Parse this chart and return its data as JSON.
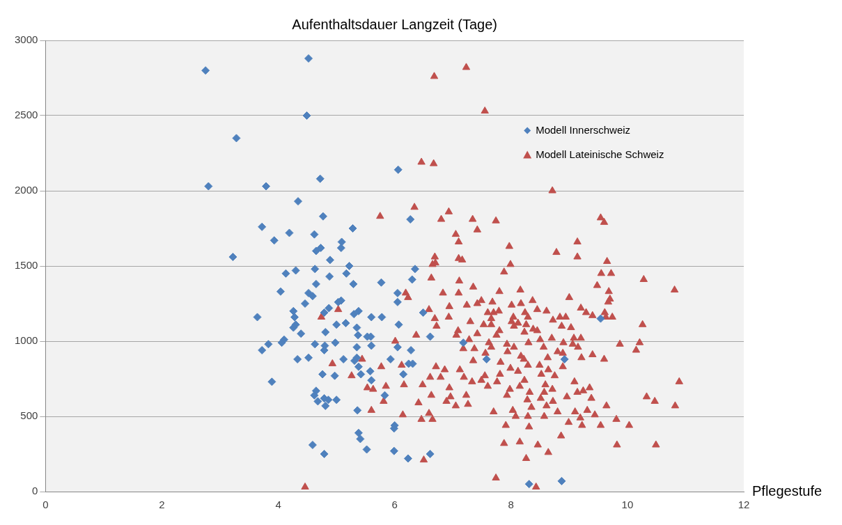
{
  "chart_data": {
    "type": "scatter",
    "xlabel": "Pflegestufe",
    "ylabel": "Aufenthaltsdauer Langzeit (Tage)",
    "xlim": [
      0,
      12
    ],
    "xticks": [
      0,
      2,
      4,
      6,
      8,
      10,
      12
    ],
    "ylim": [
      0,
      3000
    ],
    "yticks": [
      0,
      500,
      1000,
      1500,
      2000,
      2500,
      3000
    ],
    "grid": "y",
    "legend": "top right",
    "series": [
      {
        "name": "Modell Innerschweiz",
        "color": "#4f81bd",
        "marker": "diamond",
        "x": [
          2.75,
          4.52,
          4.49,
          3.28,
          2.8,
          3.79,
          4.72,
          6.06,
          4.34,
          4.77,
          3.72,
          4.19,
          5.28,
          4.62,
          3.93,
          5.09,
          6.27,
          4.73,
          4.65,
          5.08,
          3.22,
          4.89,
          5.22,
          4.13,
          4.3,
          4.63,
          6.35,
          4.88,
          5.17,
          6.3,
          5.29,
          4.65,
          5.77,
          4.04,
          4.52,
          4.59,
          6.05,
          5.08,
          4.46,
          5.03,
          6.05,
          6.49,
          3.64,
          4.26,
          4.28,
          4.87,
          4.79,
          5.3,
          5.38,
          5.6,
          5.78,
          4.3,
          4.26,
          5.0,
          5.16,
          6.07,
          5.35,
          4.39,
          4.1,
          4.06,
          4.81,
          5.37,
          5.53,
          5.59,
          6.61,
          7.18,
          9.54,
          3.83,
          3.72,
          4.63,
          4.8,
          4.98,
          5.35,
          5.6,
          6.05,
          6.28,
          4.33,
          4.52,
          4.79,
          5.12,
          5.31,
          5.35,
          5.38,
          5.93,
          6.24,
          6.31,
          6.15,
          7.58,
          8.92,
          5.42,
          4.97,
          4.76,
          5.58,
          5.6,
          3.89,
          5.83,
          4.65,
          4.62,
          4.68,
          4.79,
          4.86,
          4.81,
          5.0,
          5.36,
          6.0,
          5.99,
          5.38,
          5.41,
          4.59,
          4.79,
          5.52,
          5.99,
          6.23,
          6.61,
          8.31,
          8.87
        ],
        "values": [
          2800,
          2880,
          2500,
          2350,
          2030,
          2030,
          2080,
          2140,
          1930,
          1830,
          1760,
          1720,
          1750,
          1710,
          1670,
          1660,
          1810,
          1620,
          1600,
          1620,
          1560,
          1540,
          1500,
          1450,
          1470,
          1480,
          1480,
          1430,
          1450,
          1410,
          1380,
          1380,
          1390,
          1330,
          1320,
          1300,
          1320,
          1270,
          1250,
          1260,
          1260,
          1190,
          1160,
          1200,
          1160,
          1220,
          1190,
          1180,
          1200,
          1160,
          1160,
          1110,
          1090,
          1110,
          1120,
          1110,
          1090,
          1050,
          1010,
          990,
          1060,
          1040,
          1030,
          1030,
          1030,
          990,
          1150,
          980,
          940,
          980,
          970,
          990,
          960,
          970,
          960,
          940,
          880,
          890,
          940,
          880,
          870,
          890,
          830,
          880,
          850,
          850,
          780,
          880,
          880,
          780,
          770,
          780,
          800,
          740,
          730,
          640,
          670,
          640,
          600,
          620,
          610,
          570,
          610,
          540,
          440,
          420,
          390,
          350,
          310,
          250,
          280,
          270,
          220,
          250,
          50,
          70
        ]
      },
      {
        "name": "Modell Lateinische Schweiz",
        "color": "#c0504d",
        "marker": "triangle",
        "x": [
          7.23,
          6.68,
          7.55,
          6.46,
          6.67,
          8.71,
          5.75,
          6.34,
          6.93,
          6.8,
          7.34,
          7.42,
          7.74,
          7.05,
          7.1,
          9.14,
          9.54,
          9.6,
          7.97,
          6.69,
          7.1,
          7.16,
          6.7,
          6.65,
          7.99,
          8.78,
          9.14,
          9.65,
          7.88,
          9.55,
          6.63,
          10.28,
          7.11,
          7.35,
          7.8,
          10.81,
          6.83,
          6.19,
          6.23,
          8.16,
          9.0,
          9.48,
          9.68,
          9.72,
          6.59,
          7.1,
          7.49,
          6.94,
          7.24,
          7.42,
          7.68,
          8.01,
          8.17,
          8.37,
          9.7,
          9.67,
          4.74,
          5.03,
          7.6,
          7.7,
          7.79,
          8.04,
          8.24,
          8.29,
          8.84,
          8.45,
          8.61,
          9.2,
          9.29,
          9.4,
          9.63,
          9.74,
          9.61,
          6.69,
          6.93,
          7.3,
          7.53,
          7.66,
          8.01,
          8.12,
          8.26,
          8.72,
          8.94,
          10.26,
          6.37,
          6.72,
          7.09,
          7.66,
          7.8,
          8.05,
          8.38,
          8.45,
          8.87,
          7.06,
          7.28,
          7.42,
          7.75,
          8.23,
          8.5,
          8.7,
          9.08,
          9.2,
          9.03,
          6.01,
          7.62,
          7.66,
          7.93,
          8.3,
          8.9,
          9.06,
          9.87,
          10.21,
          10.15,
          7.18,
          7.37,
          7.94,
          8.05,
          8.56,
          8.8,
          8.89,
          9.15,
          7.56,
          8.17,
          8.22,
          8.63,
          9.21,
          9.4,
          9.6,
          4.93,
          5.77,
          5.44,
          6.12,
          6.71,
          6.86,
          7.12,
          7.35,
          7.82,
          7.99,
          8.29,
          8.49,
          8.64,
          8.89,
          5.26,
          6.61,
          6.79,
          7.19,
          7.55,
          7.81,
          8.12,
          8.52,
          8.75,
          10.89,
          7.33,
          7.49,
          7.76,
          8.23,
          8.59,
          9.09,
          5.53,
          5.63,
          5.85,
          6.16,
          6.48,
          6.94,
          7.6,
          7.98,
          8.15,
          8.71,
          9.14,
          9.24,
          9.35,
          6.63,
          6.96,
          7.23,
          7.93,
          8.32,
          8.51,
          8.57,
          8.96,
          9.38,
          10.33,
          10.47,
          5.81,
          6.89,
          7.26,
          8.28,
          8.72,
          5.6,
          6.41,
          7.05,
          7.7,
          8.03,
          8.35,
          8.61,
          8.8,
          9.1,
          9.31,
          9.64,
          10.82,
          6.14,
          6.59,
          6.65,
          6.46,
          8.08,
          8.29,
          8.57,
          8.99,
          9.44,
          9.81,
          10.03,
          7.91,
          8.31,
          9.22,
          9.19,
          9.54,
          8.15,
          8.46,
          7.88,
          8.86,
          9.82,
          10.49,
          8.26,
          8.64,
          6.5,
          7.74,
          8.43,
          4.46
        ],
        "values": [
          2820,
          2760,
          2530,
          2190,
          2180,
          2000,
          1830,
          1890,
          1860,
          1810,
          1810,
          1740,
          1800,
          1710,
          1660,
          1660,
          1820,
          1790,
          1630,
          1560,
          1550,
          1540,
          1520,
          1510,
          1510,
          1590,
          1560,
          1530,
          1460,
          1450,
          1420,
          1410,
          1400,
          1360,
          1330,
          1340,
          1320,
          1320,
          1290,
          1340,
          1290,
          1370,
          1330,
          1450,
          1210,
          1320,
          1270,
          1230,
          1240,
          1250,
          1260,
          1240,
          1250,
          1270,
          1280,
          1260,
          1160,
          1210,
          1190,
          1190,
          1200,
          1160,
          1190,
          1160,
          1160,
          1210,
          1200,
          1220,
          1190,
          1170,
          1160,
          1160,
          1190,
          1150,
          1160,
          1130,
          1110,
          1150,
          1130,
          1120,
          1110,
          1140,
          1160,
          1110,
          1040,
          1100,
          1070,
          1110,
          1070,
          1100,
          1080,
          1070,
          1100,
          1040,
          1010,
          1050,
          1040,
          1060,
          1010,
          1020,
          1020,
          1020,
          1090,
          1000,
          990,
          960,
          980,
          990,
          990,
          980,
          980,
          990,
          940,
          950,
          950,
          930,
          960,
          960,
          930,
          920,
          960,
          920,
          900,
          880,
          890,
          890,
          910,
          880,
          850,
          830,
          880,
          840,
          830,
          810,
          810,
          870,
          860,
          820,
          840,
          840,
          810,
          830,
          770,
          760,
          760,
          760,
          770,
          780,
          800,
          780,
          770,
          730,
          730,
          740,
          730,
          740,
          710,
          730,
          690,
          680,
          700,
          710,
          710,
          690,
          700,
          680,
          700,
          680,
          660,
          670,
          690,
          640,
          630,
          640,
          640,
          660,
          620,
          660,
          630,
          620,
          630,
          600,
          600,
          600,
          580,
          610,
          600,
          540,
          590,
          570,
          530,
          540,
          560,
          570,
          530,
          530,
          540,
          570,
          570,
          510,
          520,
          480,
          480,
          500,
          500,
          500,
          460,
          510,
          480,
          440,
          440,
          430,
          440,
          490,
          440,
          330,
          310,
          320,
          370,
          310,
          310,
          220,
          260,
          210,
          90,
          30,
          30
        ]
      }
    ]
  }
}
